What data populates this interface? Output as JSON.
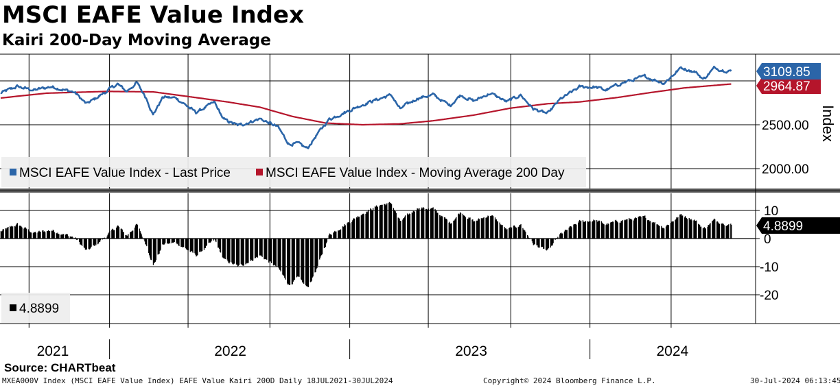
{
  "header": {
    "title": "MSCI EAFE Value Index",
    "subtitle": "Kairi 200-Day Moving Average"
  },
  "footer": {
    "source": "Source: CHARTbeat",
    "description": "MXEA000V Index (MSCI EAFE Value Index) EAFE Value Kairi 200D  Daily 18JUL2021-30JUL2024",
    "copyright": "Copyright© 2024 Bloomberg Finance L.P.",
    "timestamp": "30-Jul-2024 06:13:45"
  },
  "colors": {
    "last_price": "#2b65a8",
    "moving_average": "#b5152b",
    "kairi": "#000000",
    "grid": "#000000",
    "legend_bg": "#eeeeee",
    "price_badge": "#2b65a8",
    "ma_badge": "#b5152b",
    "kairi_badge": "#000000"
  },
  "chart_data": [
    {
      "type": "line",
      "title": "MSCI EAFE Value Index",
      "ylabel": "Index",
      "ylim": [
        1700,
        3350
      ],
      "y_ticks": [
        "2000.00",
        "2500.00"
      ],
      "x_range": [
        "2021-07-18",
        "2024-07-30"
      ],
      "grid": true,
      "legend_position": "bottom-left",
      "last_values": {
        "last_price": "3109.85",
        "moving_average": "2964.87"
      },
      "series": [
        {
          "name": "MSCI EAFE Value Index - Last Price",
          "points": [
            [
              "2021-07-19",
              2860
            ],
            [
              "2021-08-13",
              2935
            ],
            [
              "2021-09-07",
              2895
            ],
            [
              "2021-10-04",
              2935
            ],
            [
              "2021-11-08",
              2870
            ],
            [
              "2021-11-26",
              2735
            ],
            [
              "2021-12-14",
              2820
            ],
            [
              "2022-01-12",
              2965
            ],
            [
              "2022-01-26",
              2880
            ],
            [
              "2022-02-10",
              2980
            ],
            [
              "2022-02-25",
              2800
            ],
            [
              "2022-03-07",
              2615
            ],
            [
              "2022-03-22",
              2815
            ],
            [
              "2022-04-11",
              2805
            ],
            [
              "2022-05-11",
              2640
            ],
            [
              "2022-06-08",
              2755
            ],
            [
              "2022-06-22",
              2560
            ],
            [
              "2022-07-14",
              2490
            ],
            [
              "2022-08-16",
              2570
            ],
            [
              "2022-09-12",
              2475
            ],
            [
              "2022-09-29",
              2280
            ],
            [
              "2022-10-12",
              2285
            ],
            [
              "2022-10-27",
              2230
            ],
            [
              "2022-11-10",
              2385
            ],
            [
              "2022-11-29",
              2565
            ],
            [
              "2022-12-13",
              2610
            ],
            [
              "2023-01-18",
              2730
            ],
            [
              "2023-02-14",
              2800
            ],
            [
              "2023-03-03",
              2840
            ],
            [
              "2023-03-16",
              2680
            ],
            [
              "2023-04-12",
              2805
            ],
            [
              "2023-05-05",
              2840
            ],
            [
              "2023-05-31",
              2720
            ],
            [
              "2023-06-16",
              2840
            ],
            [
              "2023-07-06",
              2770
            ],
            [
              "2023-07-31",
              2860
            ],
            [
              "2023-08-25",
              2760
            ],
            [
              "2023-09-15",
              2840
            ],
            [
              "2023-10-04",
              2680
            ],
            [
              "2023-10-26",
              2625
            ],
            [
              "2023-11-14",
              2790
            ],
            [
              "2023-12-13",
              2930
            ],
            [
              "2024-01-05",
              2930
            ],
            [
              "2024-01-22",
              2895
            ],
            [
              "2024-02-15",
              2975
            ],
            [
              "2024-03-21",
              3050
            ],
            [
              "2024-04-19",
              2975
            ],
            [
              "2024-05-15",
              3150
            ],
            [
              "2024-06-05",
              3105
            ],
            [
              "2024-06-18",
              3020
            ],
            [
              "2024-07-04",
              3145
            ],
            [
              "2024-07-30",
              3109.85
            ]
          ]
        },
        {
          "name": "MSCI EAFE Value Index - Moving Average 200 Day",
          "points": [
            [
              "2021-07-19",
              2805
            ],
            [
              "2021-09-27",
              2860
            ],
            [
              "2021-12-27",
              2880
            ],
            [
              "2022-03-07",
              2875
            ],
            [
              "2022-05-11",
              2810
            ],
            [
              "2022-06-28",
              2760
            ],
            [
              "2022-08-16",
              2700
            ],
            [
              "2022-10-04",
              2595
            ],
            [
              "2022-11-23",
              2520
            ],
            [
              "2023-01-18",
              2500
            ],
            [
              "2023-03-16",
              2510
            ],
            [
              "2023-05-05",
              2545
            ],
            [
              "2023-07-06",
              2610
            ],
            [
              "2023-08-31",
              2690
            ],
            [
              "2023-10-26",
              2740
            ],
            [
              "2023-12-13",
              2760
            ],
            [
              "2024-02-08",
              2810
            ],
            [
              "2024-03-28",
              2865
            ],
            [
              "2024-05-20",
              2920
            ],
            [
              "2024-07-30",
              2964.87
            ]
          ]
        }
      ]
    },
    {
      "type": "bar",
      "title": "Kairi 200-Day Moving Average",
      "ylim": [
        -30,
        18
      ],
      "y_ticks": [
        "10",
        "0",
        "-10",
        "-20"
      ],
      "x_range": [
        "2021-07-18",
        "2024-07-30"
      ],
      "grid": true,
      "legend_position": "bottom-left",
      "last_value": "4.8899",
      "legend_label": "4.8899",
      "series": [
        {
          "name": "4.8899",
          "points": [
            [
              "2021-07-19",
              2.5
            ],
            [
              "2021-08-13",
              5.0
            ],
            [
              "2021-09-07",
              2.0
            ],
            [
              "2021-10-04",
              3.0
            ],
            [
              "2021-11-08",
              0.3
            ],
            [
              "2021-11-26",
              -4.5
            ],
            [
              "2021-12-14",
              -1.5
            ],
            [
              "2022-01-12",
              4.5
            ],
            [
              "2022-01-26",
              1.0
            ],
            [
              "2022-02-10",
              5.0
            ],
            [
              "2022-02-25",
              -2.5
            ],
            [
              "2022-03-07",
              -9.5
            ],
            [
              "2022-03-22",
              -2.0
            ],
            [
              "2022-04-11",
              -1.5
            ],
            [
              "2022-05-11",
              -6.0
            ],
            [
              "2022-06-08",
              -0.5
            ],
            [
              "2022-06-22",
              -7.5
            ],
            [
              "2022-07-14",
              -10.0
            ],
            [
              "2022-08-16",
              -6.0
            ],
            [
              "2022-09-12",
              -10.5
            ],
            [
              "2022-09-29",
              -16.5
            ],
            [
              "2022-10-12",
              -14.0
            ],
            [
              "2022-10-27",
              -17.5
            ],
            [
              "2022-11-10",
              -10.5
            ],
            [
              "2022-11-29",
              1.5
            ],
            [
              "2022-12-13",
              3.5
            ],
            [
              "2023-01-18",
              9.0
            ],
            [
              "2023-02-14",
              12.0
            ],
            [
              "2023-03-03",
              12.5
            ],
            [
              "2023-03-16",
              6.0
            ],
            [
              "2023-04-12",
              11.0
            ],
            [
              "2023-05-05",
              10.5
            ],
            [
              "2023-05-31",
              5.5
            ],
            [
              "2023-06-16",
              9.5
            ],
            [
              "2023-07-06",
              6.0
            ],
            [
              "2023-07-31",
              8.5
            ],
            [
              "2023-08-25",
              3.0
            ],
            [
              "2023-09-15",
              5.0
            ],
            [
              "2023-10-04",
              -2.0
            ],
            [
              "2023-10-26",
              -4.5
            ],
            [
              "2023-11-14",
              1.5
            ],
            [
              "2023-12-13",
              6.0
            ],
            [
              "2024-01-05",
              6.5
            ],
            [
              "2024-01-22",
              5.0
            ],
            [
              "2024-02-15",
              6.5
            ],
            [
              "2024-03-21",
              7.5
            ],
            [
              "2024-04-19",
              4.0
            ],
            [
              "2024-05-15",
              8.5
            ],
            [
              "2024-06-05",
              6.5
            ],
            [
              "2024-06-18",
              3.5
            ],
            [
              "2024-07-04",
              6.5
            ],
            [
              "2024-07-30",
              4.8899
            ]
          ]
        }
      ]
    }
  ],
  "x_axis": {
    "years": [
      "2021",
      "2022",
      "2023",
      "2024"
    ]
  }
}
